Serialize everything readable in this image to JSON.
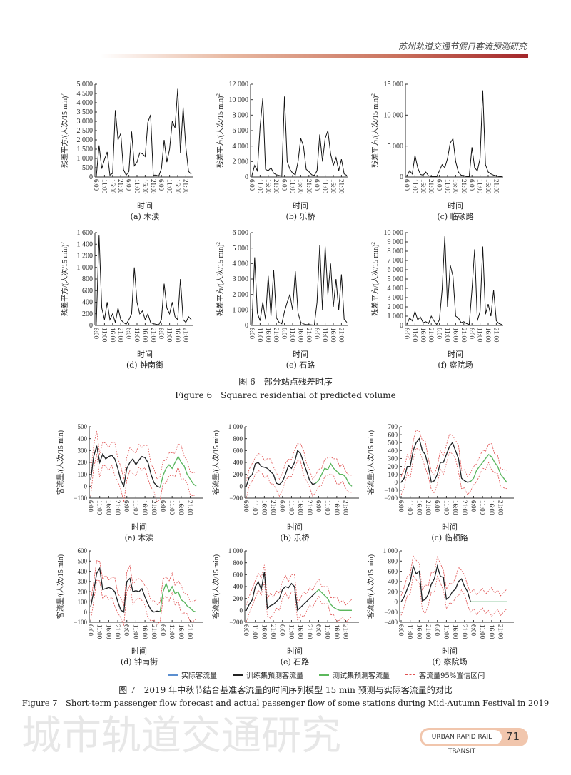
{
  "header": {
    "running_title": "苏州轨道交通节假日客流预测研究"
  },
  "watermark": "城市轨道交通研究",
  "x_axis_label": "时间",
  "x_tick_labels": [
    "6:00",
    "11:00",
    "16:00",
    "21:00"
  ],
  "figure6": {
    "caption_cn": "图 6　部分站点残差时序",
    "caption_en": "Figure 6　Squared residential of predicted volume",
    "ylabel": "残差平方/(人次/15 min)",
    "ylabel_sup": "2"
  },
  "figure7": {
    "caption_cn": "图 7　2019 年中秋节结合基准客流量的时间序列模型 15 min 预测与实际客流量的对比",
    "caption_en": "Figure 7　Short-term passenger flow forecast and actual passenger flow of some stations during Mid-Autumn Festival in 2019",
    "ylabel": "客流量/(人次/15 min)",
    "legend": [
      {
        "label": "实际客流量",
        "color": "#5b8fd0",
        "style": "solid"
      },
      {
        "label": "训练集预测客流量",
        "color": "#222222",
        "style": "solid"
      },
      {
        "label": "测试集预测客流量",
        "color": "#5cb85c",
        "style": "solid"
      },
      {
        "label": "客流量95%置信区间",
        "color": "#e05050",
        "style": "dashed"
      }
    ]
  },
  "chart_data": [
    {
      "figure": "6",
      "panel": "(a) 木渎",
      "type": "line",
      "ylim": [
        0,
        5000
      ],
      "ytick_step": 500,
      "values": [
        50,
        1700,
        450,
        950,
        1350,
        100,
        200,
        3600,
        2000,
        2350,
        400,
        100,
        300,
        2450,
        600,
        800,
        1300,
        1250,
        1100,
        2950,
        3350,
        100,
        100,
        50,
        450,
        2000,
        800,
        1500,
        3000,
        2650,
        4750,
        1300,
        3750,
        1600,
        300,
        150
      ]
    },
    {
      "figure": "6",
      "panel": "(b) 乐桥",
      "type": "line",
      "ylim": [
        0,
        12000
      ],
      "ytick_step": 2000,
      "values": [
        200,
        1500,
        800,
        6500,
        10200,
        1000,
        800,
        1200,
        500,
        300,
        200,
        100,
        10400,
        2000,
        1000,
        500,
        300,
        2000,
        5000,
        4000,
        1000,
        700,
        300,
        200,
        800,
        5500,
        2000,
        5000,
        6000,
        3000,
        1500,
        2500,
        800,
        2300,
        400,
        200
      ]
    },
    {
      "figure": "6",
      "panel": "(c) 临顿路",
      "type": "line",
      "ylim": [
        0,
        15000
      ],
      "ytick_step": 5000,
      "values": [
        100,
        1000,
        500,
        3500,
        1500,
        400,
        300,
        800,
        200,
        100,
        100,
        50,
        1000,
        2000,
        1500,
        3000,
        5500,
        6200,
        2500,
        800,
        300,
        200,
        100,
        50,
        4800,
        1500,
        1000,
        3000,
        14000,
        2000,
        800,
        500,
        300,
        200,
        100,
        50
      ]
    },
    {
      "figure": "6",
      "panel": "(d) 钟南街",
      "type": "line",
      "ylim": [
        0,
        1600
      ],
      "ytick_step": 200,
      "values": [
        50,
        1550,
        300,
        100,
        400,
        100,
        200,
        50,
        300,
        100,
        50,
        20,
        100,
        200,
        1000,
        400,
        200,
        250,
        100,
        200,
        50,
        30,
        20,
        10,
        100,
        720,
        300,
        200,
        400,
        150,
        100,
        800,
        100,
        50,
        150,
        100
      ]
    },
    {
      "figure": "6",
      "panel": "(e) 石路",
      "type": "line",
      "ylim": [
        0,
        6000
      ],
      "ytick_step": 1000,
      "values": [
        100,
        4400,
        800,
        300,
        1500,
        400,
        3200,
        600,
        3600,
        500,
        200,
        100,
        900,
        1500,
        2000,
        1000,
        3500,
        800,
        200,
        100,
        50,
        50,
        30,
        20,
        1500,
        5200,
        1000,
        5100,
        2000,
        4000,
        1200,
        3000,
        1000,
        3300,
        400,
        200
      ]
    },
    {
      "figure": "6",
      "panel": "(f) 察院场",
      "type": "line",
      "ylim": [
        0,
        10000
      ],
      "ytick_step": 1000,
      "values": [
        100,
        800,
        500,
        1500,
        600,
        900,
        300,
        400,
        200,
        1000,
        500,
        100,
        600,
        3800,
        9600,
        2000,
        6500,
        5300,
        1000,
        800,
        300,
        400,
        200,
        100,
        3800,
        8200,
        500,
        1500,
        8500,
        1200,
        2300,
        1000,
        3800,
        500,
        200,
        100
      ]
    },
    {
      "figure": "7",
      "panel": "(a) 木渎",
      "type": "line",
      "ylim": [
        -100,
        500
      ],
      "ytick_step": 100,
      "ci_halfwidth": 100,
      "actual": [
        50,
        250,
        340,
        200,
        270,
        230,
        250,
        260,
        230,
        150,
        50,
        0,
        150,
        200,
        230,
        180,
        220,
        250,
        240,
        200,
        100,
        30,
        0,
        -10,
        90,
        150,
        180,
        150,
        200,
        250,
        200,
        170,
        100,
        60,
        20,
        0
      ]
    },
    {
      "figure": "7",
      "panel": "(b) 乐桥",
      "type": "line",
      "ylim": [
        -200,
        1000
      ],
      "ytick_step": 200,
      "ci_halfwidth": 150,
      "actual": [
        0,
        150,
        200,
        380,
        400,
        330,
        320,
        300,
        250,
        200,
        50,
        30,
        80,
        200,
        350,
        300,
        400,
        600,
        550,
        400,
        250,
        100,
        30,
        50,
        100,
        200,
        300,
        280,
        380,
        300,
        250,
        200,
        200,
        150,
        50,
        0
      ]
    },
    {
      "figure": "7",
      "panel": "(c) 临顿路",
      "type": "line",
      "ylim": [
        -200,
        700
      ],
      "ytick_step": 100,
      "ci_halfwidth": 120,
      "actual": [
        0,
        50,
        200,
        200,
        400,
        500,
        550,
        400,
        350,
        200,
        0,
        20,
        100,
        250,
        250,
        350,
        450,
        500,
        400,
        300,
        50,
        20,
        0,
        10,
        50,
        150,
        200,
        250,
        300,
        350,
        320,
        250,
        200,
        100,
        50,
        0
      ]
    },
    {
      "figure": "7",
      "panel": "(d) 钟南街",
      "type": "line",
      "ylim": [
        -100,
        600
      ],
      "ytick_step": 100,
      "ci_halfwidth": 100,
      "actual": [
        50,
        200,
        380,
        430,
        220,
        230,
        240,
        230,
        200,
        100,
        20,
        0,
        300,
        330,
        200,
        210,
        200,
        230,
        150,
        80,
        20,
        0,
        10,
        5,
        200,
        280,
        200,
        250,
        180,
        200,
        120,
        100,
        60,
        40,
        10,
        0
      ]
    },
    {
      "figure": "7",
      "panel": "(e) 石路",
      "type": "line",
      "ylim": [
        -200,
        1000
      ],
      "ytick_step": 200,
      "ci_halfwidth": 150,
      "actual": [
        0,
        100,
        180,
        400,
        480,
        350,
        650,
        30,
        80,
        100,
        150,
        200,
        350,
        400,
        380,
        450,
        400,
        0,
        50,
        100,
        150,
        200,
        250,
        300,
        350,
        300,
        250,
        200,
        100,
        50,
        20,
        0,
        0,
        0,
        0,
        0
      ]
    },
    {
      "figure": "7",
      "panel": "(f) 察院场",
      "type": "line",
      "ylim": [
        -400,
        1000
      ],
      "ytick_step": 200,
      "ci_halfwidth": 200,
      "actual": [
        0,
        100,
        250,
        400,
        700,
        550,
        600,
        20,
        50,
        150,
        350,
        450,
        700,
        500,
        480,
        50,
        100,
        200,
        250,
        400,
        450,
        300,
        200,
        0,
        0,
        0,
        0,
        0,
        0,
        0,
        0,
        0,
        0,
        0,
        0,
        0
      ]
    }
  ],
  "footer": {
    "journal": "URBAN RAPID RAIL TRANSIT",
    "page_number": "71"
  }
}
